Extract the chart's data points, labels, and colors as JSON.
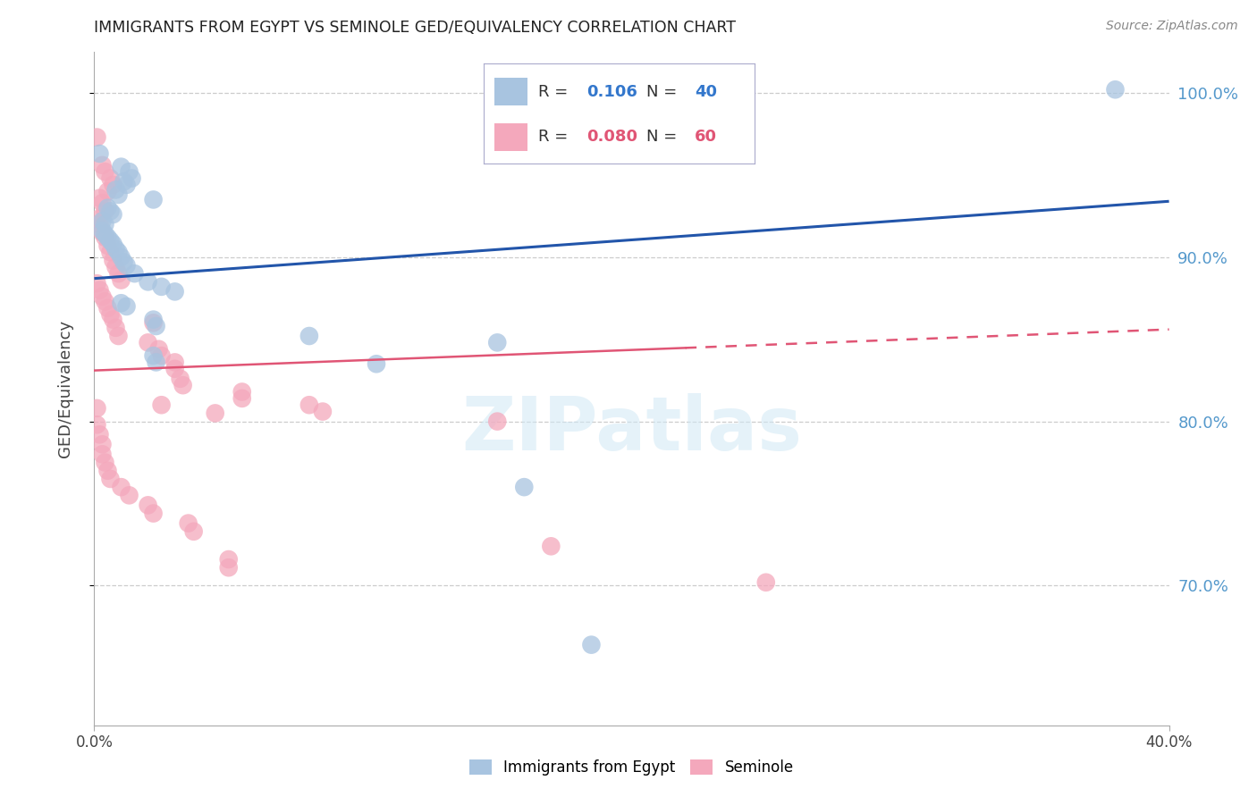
{
  "title": "IMMIGRANTS FROM EGYPT VS SEMINOLE GED/EQUIVALENCY CORRELATION CHART",
  "source": "Source: ZipAtlas.com",
  "ylabel": "GED/Equivalency",
  "xlabel_blue": "Immigrants from Egypt",
  "xlabel_pink": "Seminole",
  "watermark": "ZIPatlas",
  "xmin": 0.0,
  "xmax": 0.4,
  "ymin": 0.615,
  "ymax": 1.025,
  "yticks": [
    0.7,
    0.8,
    0.9,
    1.0
  ],
  "ytick_labels": [
    "70.0%",
    "80.0%",
    "90.0%",
    "100.0%"
  ],
  "blue_color": "#A8C4E0",
  "pink_color": "#F4A8BC",
  "line_blue_color": "#2255AA",
  "line_pink_color": "#E05575",
  "right_axis_color": "#5599CC",
  "blue_scatter": [
    [
      0.002,
      0.963
    ],
    [
      0.01,
      0.955
    ],
    [
      0.013,
      0.952
    ],
    [
      0.014,
      0.948
    ],
    [
      0.011,
      0.946
    ],
    [
      0.012,
      0.944
    ],
    [
      0.008,
      0.941
    ],
    [
      0.009,
      0.938
    ],
    [
      0.022,
      0.935
    ],
    [
      0.005,
      0.93
    ],
    [
      0.006,
      0.928
    ],
    [
      0.007,
      0.926
    ],
    [
      0.003,
      0.922
    ],
    [
      0.004,
      0.92
    ],
    [
      0.003,
      0.916
    ],
    [
      0.004,
      0.914
    ],
    [
      0.005,
      0.912
    ],
    [
      0.006,
      0.91
    ],
    [
      0.007,
      0.908
    ],
    [
      0.008,
      0.905
    ],
    [
      0.009,
      0.903
    ],
    [
      0.01,
      0.9
    ],
    [
      0.011,
      0.897
    ],
    [
      0.012,
      0.895
    ],
    [
      0.015,
      0.89
    ],
    [
      0.02,
      0.885
    ],
    [
      0.025,
      0.882
    ],
    [
      0.03,
      0.879
    ],
    [
      0.022,
      0.862
    ],
    [
      0.023,
      0.858
    ],
    [
      0.08,
      0.852
    ],
    [
      0.15,
      0.848
    ],
    [
      0.022,
      0.84
    ],
    [
      0.023,
      0.836
    ],
    [
      0.16,
      0.76
    ],
    [
      0.185,
      0.664
    ],
    [
      0.38,
      1.002
    ],
    [
      0.105,
      0.835
    ],
    [
      0.01,
      0.872
    ],
    [
      0.012,
      0.87
    ]
  ],
  "pink_scatter": [
    [
      0.001,
      0.973
    ],
    [
      0.003,
      0.956
    ],
    [
      0.004,
      0.952
    ],
    [
      0.006,
      0.948
    ],
    [
      0.007,
      0.944
    ],
    [
      0.005,
      0.94
    ],
    [
      0.002,
      0.936
    ],
    [
      0.003,
      0.933
    ],
    [
      0.004,
      0.928
    ],
    [
      0.001,
      0.923
    ],
    [
      0.002,
      0.92
    ],
    [
      0.003,
      0.915
    ],
    [
      0.004,
      0.912
    ],
    [
      0.005,
      0.907
    ],
    [
      0.006,
      0.903
    ],
    [
      0.007,
      0.898
    ],
    [
      0.008,
      0.894
    ],
    [
      0.009,
      0.89
    ],
    [
      0.01,
      0.886
    ],
    [
      0.001,
      0.884
    ],
    [
      0.002,
      0.88
    ],
    [
      0.003,
      0.876
    ],
    [
      0.004,
      0.873
    ],
    [
      0.005,
      0.869
    ],
    [
      0.006,
      0.865
    ],
    [
      0.007,
      0.862
    ],
    [
      0.008,
      0.857
    ],
    [
      0.009,
      0.852
    ],
    [
      0.02,
      0.848
    ],
    [
      0.024,
      0.844
    ],
    [
      0.025,
      0.84
    ],
    [
      0.03,
      0.836
    ],
    [
      0.03,
      0.832
    ],
    [
      0.032,
      0.826
    ],
    [
      0.033,
      0.822
    ],
    [
      0.055,
      0.818
    ],
    [
      0.055,
      0.814
    ],
    [
      0.08,
      0.81
    ],
    [
      0.085,
      0.806
    ],
    [
      0.15,
      0.8
    ],
    [
      0.001,
      0.808
    ],
    [
      0.001,
      0.798
    ],
    [
      0.002,
      0.792
    ],
    [
      0.003,
      0.786
    ],
    [
      0.003,
      0.78
    ],
    [
      0.004,
      0.775
    ],
    [
      0.005,
      0.77
    ],
    [
      0.006,
      0.765
    ],
    [
      0.01,
      0.76
    ],
    [
      0.013,
      0.755
    ],
    [
      0.02,
      0.749
    ],
    [
      0.022,
      0.744
    ],
    [
      0.035,
      0.738
    ],
    [
      0.037,
      0.733
    ],
    [
      0.022,
      0.86
    ],
    [
      0.17,
      0.724
    ],
    [
      0.05,
      0.716
    ],
    [
      0.05,
      0.711
    ],
    [
      0.025,
      0.81
    ],
    [
      0.045,
      0.805
    ],
    [
      0.25,
      0.702
    ]
  ],
  "blue_line": [
    [
      0.0,
      0.887
    ],
    [
      0.4,
      0.934
    ]
  ],
  "pink_line": [
    [
      0.0,
      0.831
    ],
    [
      0.4,
      0.856
    ]
  ]
}
